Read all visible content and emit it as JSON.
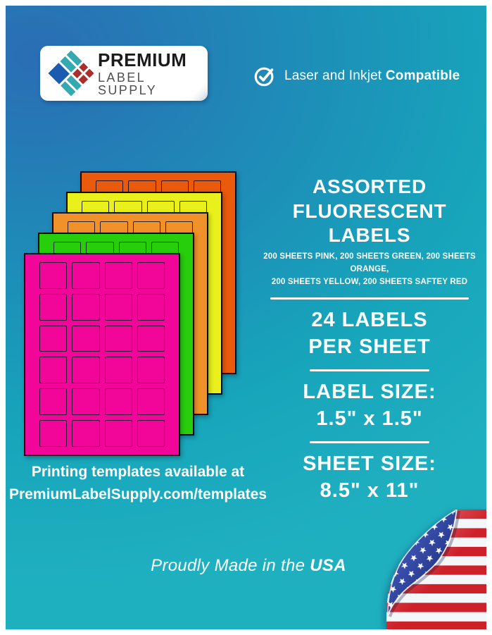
{
  "brand": {
    "name_top": "PREMIUM",
    "name_bottom": "LABEL SUPPLY"
  },
  "compatibility": {
    "prefix": "Laser and Inkjet ",
    "bold": "Compatible"
  },
  "headline": {
    "line1": "ASSORTED",
    "line2": "FLUORESCENT LABELS"
  },
  "subheadline": {
    "line1": "200 SHEETS PINK, 200 SHEETS GREEN, 200 SHEETS ORANGE,",
    "line2": "200 SHEETS YELLOW, 200 SHEETS SAFTEY RED"
  },
  "specs": [
    {
      "line1": "24 LABELS",
      "line2": "PER SHEET"
    },
    {
      "line1": "LABEL SIZE:",
      "line2": "1.5\" x 1.5\""
    },
    {
      "line1": "SHEET SIZE:",
      "line2": "8.5\" x 11\""
    }
  ],
  "templates_note": {
    "line1": "Printing templates available at",
    "line2": "PremiumLabelSupply.com/templates"
  },
  "made_in": {
    "prefix": "Proudly Made in the ",
    "bold": "USA"
  },
  "sheets": [
    {
      "name": "safety-red",
      "color": "#EA5A0C"
    },
    {
      "name": "yellow",
      "color": "#E9F01B"
    },
    {
      "name": "orange",
      "color": "#F0912A"
    },
    {
      "name": "green",
      "color": "#27CE0B"
    },
    {
      "name": "pink",
      "color": "#F20699"
    }
  ],
  "sheet_grid": {
    "columns": 4,
    "rows": 6,
    "labels_per_sheet": 24
  },
  "colors": {
    "bg_blue": "#2A6DB4",
    "bg_teal": "#17A5BB",
    "bg_teal_bright": "#1FB0C0",
    "flag_red": "#CE2029",
    "flag_blue_dark": "#101F63",
    "logo_blue": "#1C5CB0",
    "logo_teal": "#35A9B2",
    "logo_red": "#AD2D2D"
  }
}
